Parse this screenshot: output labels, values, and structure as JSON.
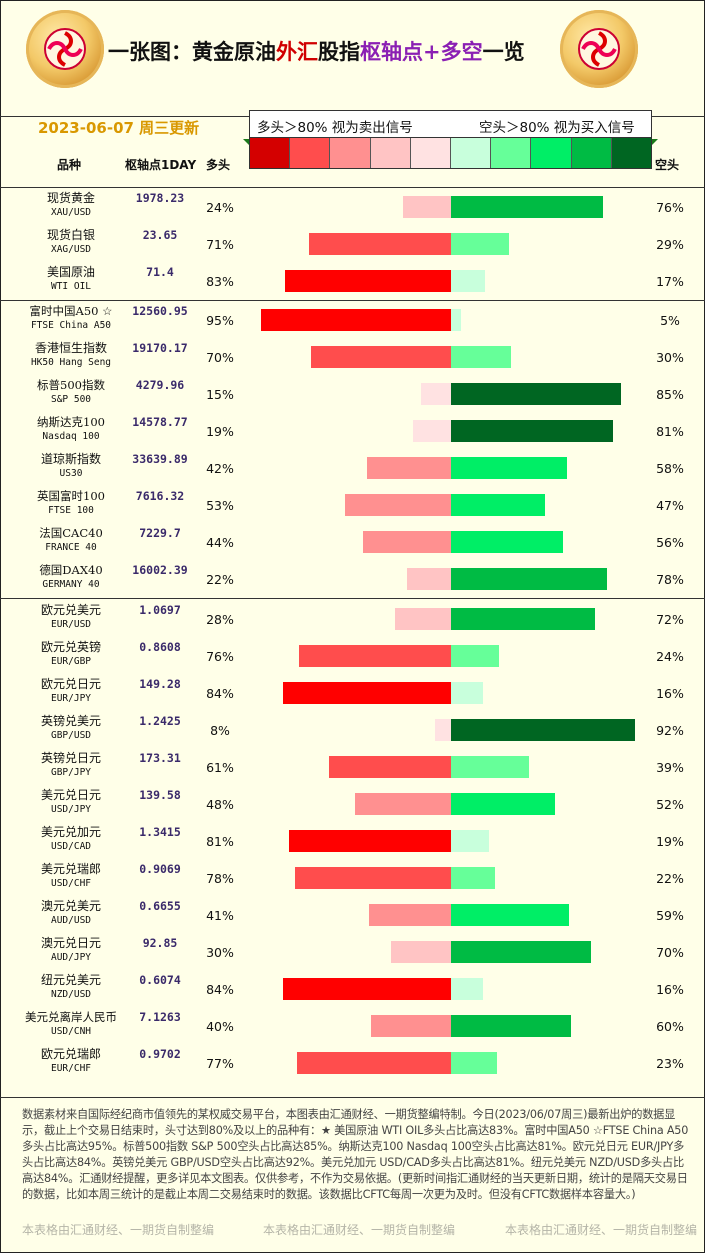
{
  "header": {
    "title_part1": "一张图：黄金原油",
    "title_part2": "外汇",
    "title_part3": "股指",
    "title_part4": "枢轴点+多空",
    "title_part5": "一览",
    "date": "2023-06-07 周三更新",
    "legend_left": "多头＞80% 视为卖出信号",
    "legend_right": "空头＞80% 视为买入信号"
  },
  "columns": {
    "name": "品种",
    "pivot": "枢轴点1DAY",
    "bear": "多头",
    "bull": "空头"
  },
  "legend_colors": [
    "#d40000",
    "#ff4d4d",
    "#ff9090",
    "#ffc4c4",
    "#ffe2e2",
    "#c8ffdc",
    "#66ff99",
    "#00ee66",
    "#00bb44",
    "#006622"
  ],
  "chart_data": {
    "type": "bar",
    "orientation": "horizontal-diverging",
    "series": [
      {
        "name": "多头",
        "values": [
          24,
          71,
          83,
          95,
          70,
          15,
          19,
          42,
          53,
          44,
          22,
          28,
          76,
          84,
          8,
          61,
          48,
          81,
          78,
          41,
          30,
          84,
          40,
          77
        ]
      },
      {
        "name": "空头",
        "values": [
          76,
          29,
          17,
          5,
          30,
          85,
          81,
          58,
          47,
          56,
          78,
          72,
          24,
          16,
          92,
          39,
          52,
          19,
          22,
          59,
          70,
          16,
          60,
          23
        ]
      }
    ],
    "categories": [
      "现货黄金",
      "现货白银",
      "美国原油",
      "富时中国A50 ☆",
      "香港恒生指数",
      "标普500指数",
      "纳斯达克100",
      "道琼斯指数",
      "英国富时100",
      "法国CAC40",
      "德国DAX40",
      "欧元兑美元",
      "欧元兑英镑",
      "欧元兑日元",
      "英镑兑美元",
      "英镑兑日元",
      "美元兑日元",
      "美元兑加元",
      "美元兑瑞郎",
      "澳元兑美元",
      "澳元兑日元",
      "纽元兑美元",
      "美元兑离岸人民币",
      "欧元兑瑞郎"
    ],
    "rows": [
      {
        "name": "现货黄金",
        "code": "XAU/USD",
        "pivot": "1978.23",
        "bear": "24%",
        "bull": "76%"
      },
      {
        "name": "现货白银",
        "code": "XAG/USD",
        "pivot": "23.65",
        "bear": "71%",
        "bull": "29%"
      },
      {
        "name": "美国原油",
        "code": "WTI OIL",
        "pivot": "71.4",
        "bear": "83%",
        "bull": "17%"
      },
      {
        "name": "富时中国A50 ☆",
        "code": "FTSE China A50",
        "pivot": "12560.95",
        "bear": "95%",
        "bull": "5%"
      },
      {
        "name": "香港恒生指数",
        "code": "HK50 Hang Seng",
        "pivot": "19170.17",
        "bear": "70%",
        "bull": "30%"
      },
      {
        "name": "标普500指数",
        "code": "S&P 500",
        "pivot": "4279.96",
        "bear": "15%",
        "bull": "85%"
      },
      {
        "name": "纳斯达克100",
        "code": "Nasdaq 100",
        "pivot": "14578.77",
        "bear": "19%",
        "bull": "81%"
      },
      {
        "name": "道琼斯指数",
        "code": "US30",
        "pivot": "33639.89",
        "bear": "42%",
        "bull": "58%"
      },
      {
        "name": "英国富时100",
        "code": "FTSE 100",
        "pivot": "7616.32",
        "bear": "53%",
        "bull": "47%"
      },
      {
        "name": "法国CAC40",
        "code": "FRANCE 40",
        "pivot": "7229.7",
        "bear": "44%",
        "bull": "56%"
      },
      {
        "name": "德国DAX40",
        "code": "GERMANY 40",
        "pivot": "16002.39",
        "bear": "22%",
        "bull": "78%"
      },
      {
        "name": "欧元兑美元",
        "code": "EUR/USD",
        "pivot": "1.0697",
        "bear": "28%",
        "bull": "72%"
      },
      {
        "name": "欧元兑英镑",
        "code": "EUR/GBP",
        "pivot": "0.8608",
        "bear": "76%",
        "bull": "24%"
      },
      {
        "name": "欧元兑日元",
        "code": "EUR/JPY",
        "pivot": "149.28",
        "bear": "84%",
        "bull": "16%"
      },
      {
        "name": "英镑兑美元",
        "code": "GBP/USD",
        "pivot": "1.2425",
        "bear": "8%",
        "bull": "92%"
      },
      {
        "name": "英镑兑日元",
        "code": "GBP/JPY",
        "pivot": "173.31",
        "bear": "61%",
        "bull": "39%"
      },
      {
        "name": "美元兑日元",
        "code": "USD/JPY",
        "pivot": "139.58",
        "bear": "48%",
        "bull": "52%"
      },
      {
        "name": "美元兑加元",
        "code": "USD/CAD",
        "pivot": "1.3415",
        "bear": "81%",
        "bull": "19%"
      },
      {
        "name": "美元兑瑞郎",
        "code": "USD/CHF",
        "pivot": "0.9069",
        "bear": "78%",
        "bull": "22%"
      },
      {
        "name": "澳元兑美元",
        "code": "AUD/USD",
        "pivot": "0.6655",
        "bear": "41%",
        "bull": "59%"
      },
      {
        "name": "澳元兑日元",
        "code": "AUD/JPY",
        "pivot": "92.85",
        "bear": "30%",
        "bull": "70%"
      },
      {
        "name": "纽元兑美元",
        "code": "NZD/USD",
        "pivot": "0.6074",
        "bear": "84%",
        "bull": "16%"
      },
      {
        "name": "美元兑离岸人民币",
        "code": "USD/CNH",
        "pivot": "7.1263",
        "bear": "40%",
        "bull": "60%"
      },
      {
        "name": "欧元兑瑞郎",
        "code": "EUR/CHF",
        "pivot": "0.9702",
        "bear": "77%",
        "bull": "23%"
      }
    ],
    "xlim": [
      0,
      100
    ],
    "group_breaks_after": [
      2,
      10
    ]
  },
  "footer": {
    "text": "数据素材来自国际经纪商市值领先的某权威交易平台，本图表由汇通财经、一期货整编特制。今日(2023/06/07周三)最新出炉的数据显示，截止上个交易日结束时，头寸达到80%及以上的品种有：★ 美国原油 WTI OIL多头占比高达83%。富时中国A50 ☆FTSE China A50多头占比高达95%。标普500指数 S&P 500空头占比高达85%。纳斯达克100 Nasdaq 100空头占比高达81%。欧元兑日元 EUR/JPY多头占比高达84%。英镑兑美元 GBP/USD空头占比高达92%。美元兑加元 USD/CAD多头占比高达81%。纽元兑美元 NZD/USD多头占比高达84%。汇通财经提醒，更多详见本文图表。仅供参考，不作为交易依据。(更新时间指汇通财经的当天更新日期，统计的是隔天交易日的数据，比如本周三统计的是截止本周二交易结束时的数据。该数据比CFTC每周一次更为及时。但没有CFTC数据样本容量大。)",
    "watermark": "本表格由汇通财经、一期货自制整编"
  }
}
